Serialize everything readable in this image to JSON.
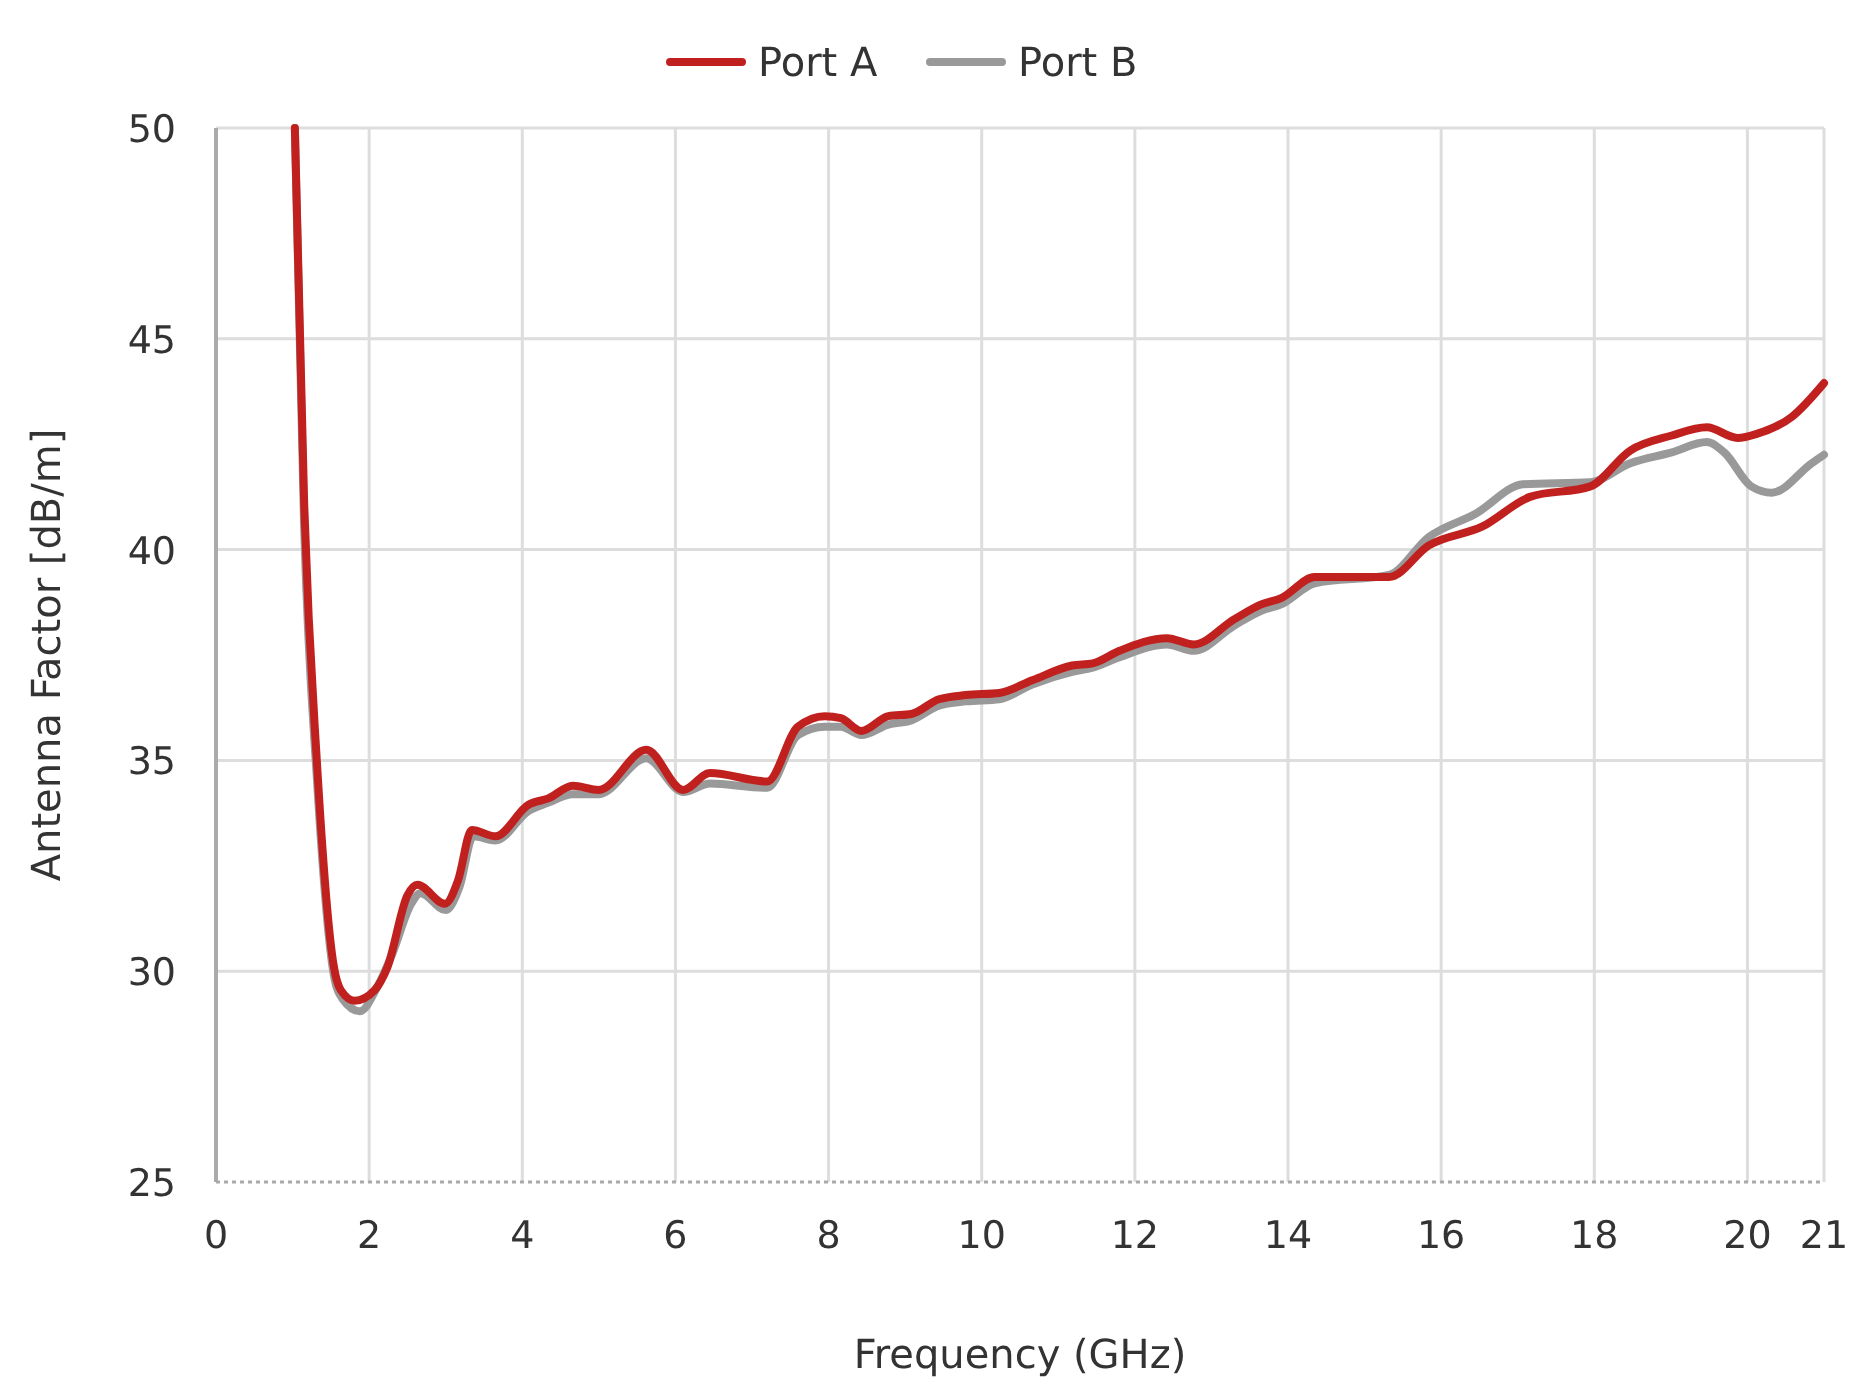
{
  "chart_data": {
    "type": "line",
    "xlabel": "Frequency (GHz)",
    "ylabel": "Antenna Factor [dB/m]",
    "xlim": [
      0,
      21
    ],
    "xticks": [
      0,
      2,
      4,
      6,
      8,
      10,
      12,
      14,
      16,
      18,
      20,
      21
    ],
    "ylim": [
      25,
      50
    ],
    "yticks": [
      25,
      30,
      35,
      40,
      45,
      50
    ],
    "grid": true,
    "legend": "top",
    "line_style": "solid",
    "series": [
      {
        "name": "Port A",
        "color": "#c0211f",
        "x": [
          1.03,
          1.15,
          1.32,
          1.54,
          1.63,
          1.81,
          2.07,
          2.24,
          2.5,
          2.63,
          2.99,
          3.16,
          3.34,
          3.65,
          4.08,
          4.34,
          4.66,
          5.0,
          5.62,
          6.1,
          6.45,
          7.2,
          7.6,
          7.95,
          8.16,
          8.43,
          8.78,
          9.08,
          9.44,
          9.79,
          10.23,
          10.66,
          11.18,
          11.45,
          11.8,
          12.42,
          12.77,
          13.3,
          13.65,
          13.91,
          14.35,
          15.32,
          15.84,
          16.54,
          17.16,
          17.95,
          18.47,
          19.0,
          19.47,
          19.87,
          20.13,
          20.58,
          21
        ],
        "values": [
          50,
          41.2,
          34.9,
          30.1,
          29.55,
          29.3,
          29.55,
          30.1,
          31.8,
          32.05,
          31.6,
          32.15,
          33.35,
          33.2,
          33.95,
          34.1,
          34.4,
          34.3,
          35.25,
          34.3,
          34.7,
          34.5,
          35.8,
          36.05,
          36.0,
          35.7,
          36.05,
          36.1,
          36.45,
          36.55,
          36.6,
          36.9,
          37.25,
          37.3,
          37.6,
          37.9,
          37.75,
          38.35,
          38.7,
          38.85,
          39.35,
          39.35,
          40.1,
          40.55,
          41.25,
          41.5,
          42.35,
          42.7,
          42.9,
          42.65,
          42.75,
          43.15,
          43.95
        ]
      },
      {
        "name": "Port B",
        "color": "#999999",
        "x": [
          1.03,
          1.15,
          1.32,
          1.54,
          1.65,
          1.88,
          2.1,
          2.3,
          2.55,
          2.67,
          3.0,
          3.18,
          3.36,
          3.65,
          4.08,
          4.34,
          4.66,
          5.0,
          5.62,
          6.1,
          6.45,
          7.2,
          7.6,
          7.95,
          8.16,
          8.43,
          8.78,
          9.08,
          9.44,
          9.79,
          10.23,
          10.66,
          11.18,
          11.45,
          11.8,
          12.42,
          12.77,
          13.3,
          13.65,
          13.91,
          14.35,
          15.32,
          15.84,
          16.45,
          17.07,
          17.95,
          18.47,
          19.0,
          19.47,
          19.7,
          20.05,
          20.32,
          20.84,
          21
        ],
        "values": [
          50,
          40.6,
          34.5,
          29.9,
          29.35,
          29.05,
          29.6,
          30.4,
          31.6,
          31.85,
          31.45,
          32.0,
          33.2,
          33.1,
          33.8,
          34.0,
          34.2,
          34.2,
          35.05,
          34.25,
          34.45,
          34.35,
          35.6,
          35.8,
          35.8,
          35.6,
          35.85,
          35.95,
          36.3,
          36.4,
          36.45,
          36.8,
          37.1,
          37.2,
          37.45,
          37.75,
          37.6,
          38.2,
          38.55,
          38.7,
          39.2,
          39.4,
          40.3,
          40.85,
          41.55,
          41.6,
          42.05,
          42.3,
          42.55,
          42.3,
          41.5,
          41.35,
          42.05,
          42.25
        ]
      }
    ]
  }
}
